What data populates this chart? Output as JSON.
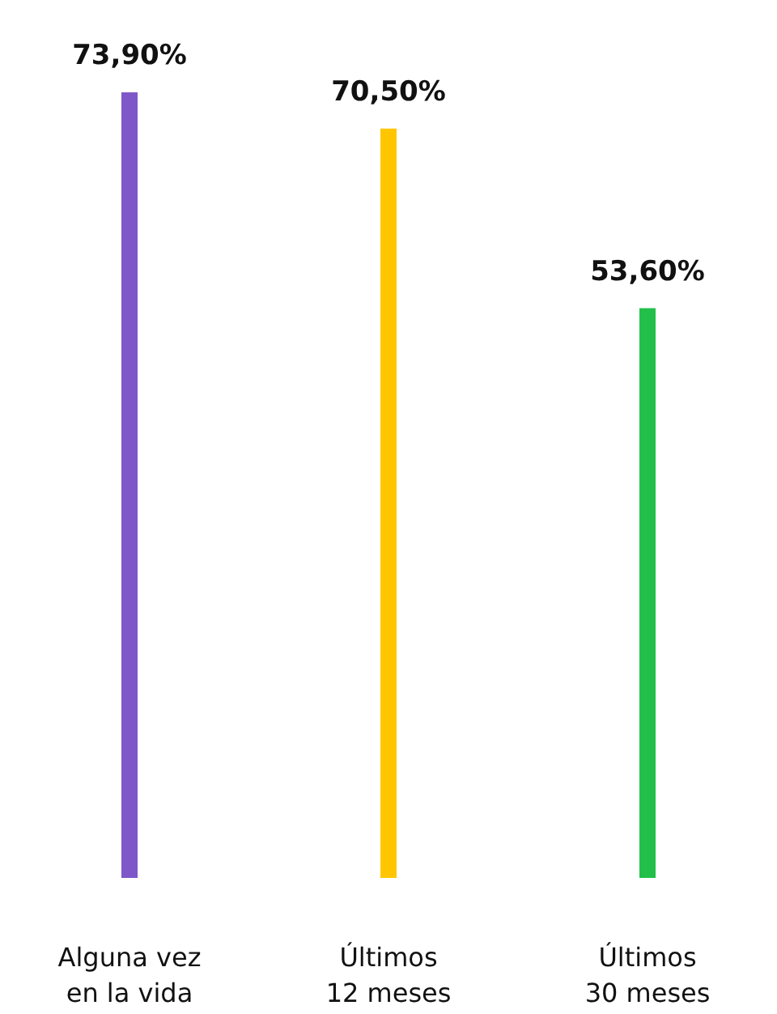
{
  "chart_data": {
    "type": "bar",
    "categories": [
      "Alguna vez\nen la vida",
      "Últimos\n12 meses",
      "Últimos\n30 meses"
    ],
    "values": [
      73.9,
      70.5,
      53.6
    ],
    "colors": [
      "#7e57c8",
      "#ffc600",
      "#22c04a"
    ],
    "value_labels": [
      "73,90%",
      "70,50%",
      "53,60%"
    ]
  }
}
